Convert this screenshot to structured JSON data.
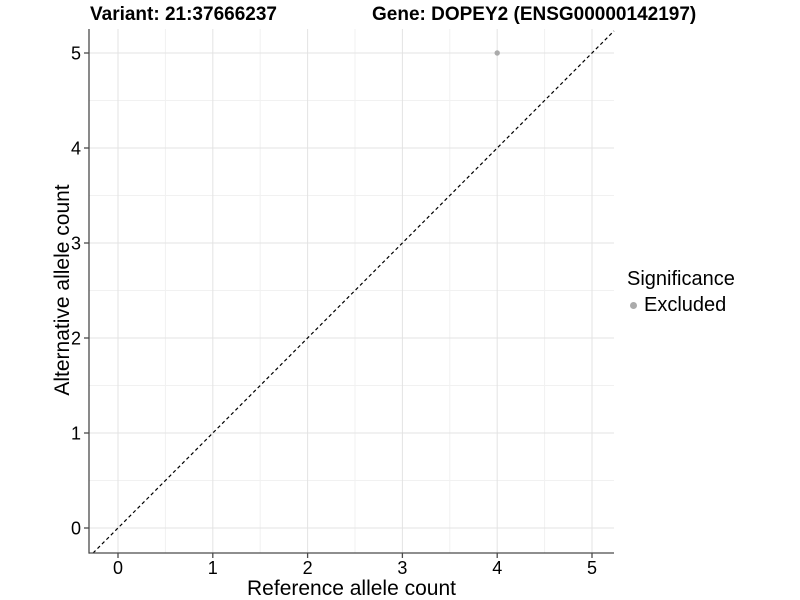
{
  "titles": {
    "variant": "Variant: 21:37666237",
    "gene": "Gene: DOPEY2 (ENSG00000142197)"
  },
  "chart_data": {
    "type": "scatter",
    "xlabel": "Reference allele count",
    "ylabel": "Alternative allele count",
    "xlim": [
      -0.25,
      5.25
    ],
    "ylim": [
      -0.25,
      5.25
    ],
    "x_ticks": [
      0,
      1,
      2,
      3,
      4,
      5
    ],
    "y_ticks": [
      0,
      1,
      2,
      3,
      4,
      5
    ],
    "grid": "major and minor gridlines, white background",
    "points": [
      {
        "x": 4,
        "y": 5,
        "series": "Excluded"
      }
    ],
    "reference_line": {
      "type": "identity",
      "slope": 1,
      "intercept": 0,
      "style": "dashed"
    },
    "legend": {
      "title": "Significance",
      "position": "right",
      "items": [
        {
          "label": "Excluded",
          "marker": "circle",
          "color": "#ababab"
        }
      ]
    }
  },
  "colors": {
    "background": "#ffffff",
    "grid_major": "#e3e3e3",
    "grid_minor": "#f1f1f1",
    "axis": "#4a4a4a",
    "tick_text": "#000000",
    "point": "#ababab",
    "reference_line": "#000000"
  }
}
